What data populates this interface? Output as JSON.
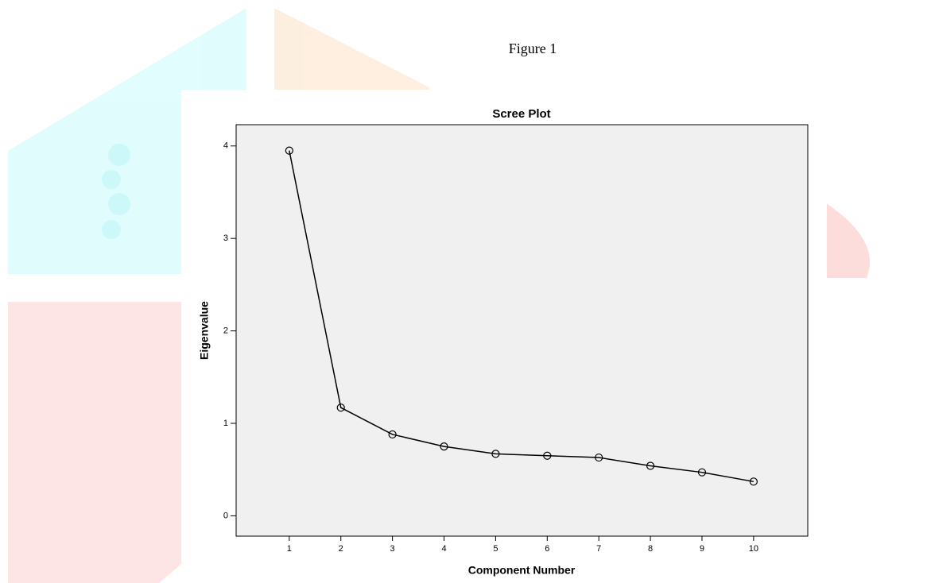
{
  "figure_caption": "Figure 1",
  "chart_data": {
    "type": "line",
    "title": "Scree Plot",
    "x_label": "Component Number",
    "y_label": "Eigenvalue",
    "x": [
      1,
      2,
      3,
      4,
      5,
      6,
      7,
      8,
      9,
      10
    ],
    "series": [
      {
        "name": "Eigenvalue",
        "color": "#000000",
        "values": [
          3.95,
          1.17,
          0.88,
          0.75,
          0.67,
          0.65,
          0.63,
          0.54,
          0.47,
          0.37
        ]
      }
    ],
    "xlim": [
      -0.03,
      11.05
    ],
    "xticks": [
      1,
      2,
      3,
      4,
      5,
      6,
      7,
      8,
      9,
      10
    ],
    "ylim": [
      -0.22,
      4.23
    ],
    "yticks": [
      0,
      1,
      2,
      3,
      4
    ],
    "markers": true
  }
}
